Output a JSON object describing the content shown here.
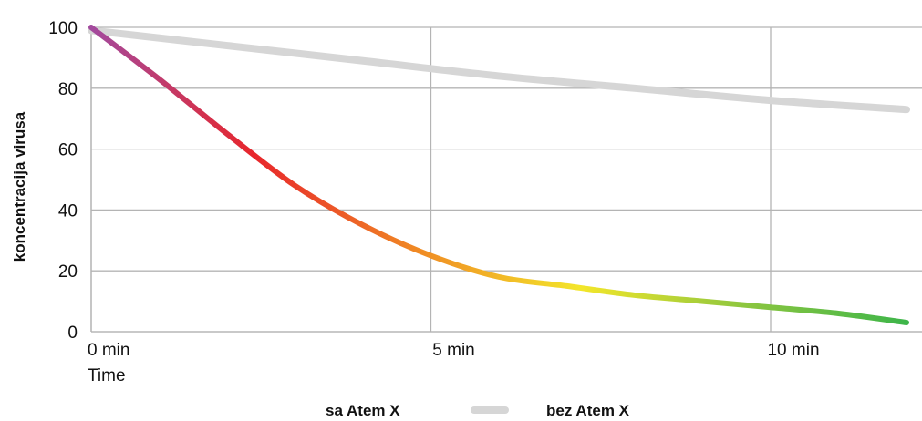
{
  "chart_data": {
    "type": "line",
    "xlabel": "Time",
    "ylabel": "koncentracija virusa",
    "xlim": [
      0,
      12
    ],
    "ylim": [
      0,
      100
    ],
    "x_ticks": [
      {
        "value": 0,
        "label": "0 min"
      },
      {
        "value": 5,
        "label": "5 min"
      },
      {
        "value": 10,
        "label": "10 min"
      }
    ],
    "y_ticks": [
      0,
      20,
      40,
      60,
      80,
      100
    ],
    "grid": true,
    "legend_position": "bottom-center",
    "series": [
      {
        "name": "sa Atem X",
        "color_stops": [
          "#a34a9e",
          "#e8262b",
          "#f08a24",
          "#f3e62a",
          "#8dc63f",
          "#3db54a"
        ],
        "x": [
          0,
          1,
          2,
          3,
          4,
          5,
          6,
          7,
          8,
          9,
          10,
          11,
          12
        ],
        "y": [
          100,
          83,
          65,
          48,
          35,
          25,
          18,
          15,
          12,
          10,
          8,
          6,
          3
        ]
      },
      {
        "name": "bez Atem X",
        "color": "#d6d6d6",
        "x": [
          0,
          2,
          4,
          6,
          8,
          10,
          12
        ],
        "y": [
          99,
          94,
          89,
          84,
          80,
          76,
          73
        ]
      }
    ]
  }
}
